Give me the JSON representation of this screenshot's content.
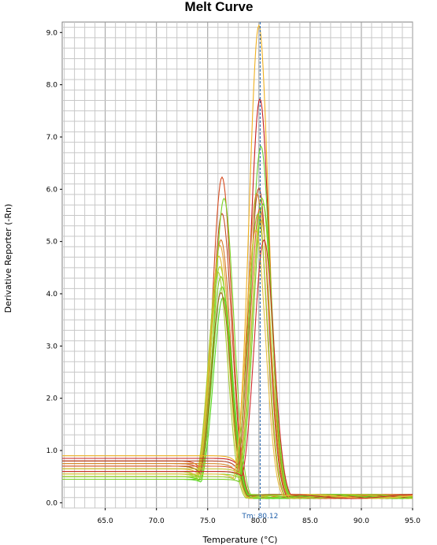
{
  "chart_data": {
    "type": "line",
    "title": "Melt Curve",
    "xlabel": "Temperature (°C)",
    "ylabel": "Derivative Reporter (-Rn)",
    "xlim": [
      60.8,
      95.0
    ],
    "ylim": [
      -0.1,
      9.2
    ],
    "x_ticks": [
      65.0,
      70.0,
      75.0,
      80.0,
      85.0,
      90.0,
      95.0
    ],
    "x_tick_labels": [
      "65.0",
      "70.0",
      "75.0",
      "80.0",
      "85.0",
      "90.0",
      "95.0"
    ],
    "y_ticks": [
      0.0,
      1.0,
      2.0,
      3.0,
      4.0,
      5.0,
      6.0,
      7.0,
      8.0,
      9.0
    ],
    "y_tick_labels": [
      "0.0",
      "1.0",
      "2.0",
      "3.0",
      "4.0",
      "5.0",
      "6.0",
      "7.0",
      "8.0",
      "9.0"
    ],
    "grid": true,
    "marker": {
      "x": 80.12,
      "label": "Tm: 80.12",
      "color": "#1f5faa"
    },
    "peaks": [
      {
        "tm": 76.4,
        "height": 6.2,
        "color": "#d44a1f",
        "base": 0.8
      },
      {
        "tm": 76.4,
        "height": 5.5,
        "color": "#c8502a",
        "base": 0.75
      },
      {
        "tm": 76.3,
        "height": 5.0,
        "color": "#d6792a",
        "base": 0.7
      },
      {
        "tm": 76.2,
        "height": 4.9,
        "color": "#e8a93a",
        "base": 0.65
      },
      {
        "tm": 76.1,
        "height": 4.7,
        "color": "#e0b830",
        "base": 0.6
      },
      {
        "tm": 76.2,
        "height": 4.5,
        "color": "#b6d42c",
        "base": 0.55
      },
      {
        "tm": 76.3,
        "height": 4.3,
        "color": "#8ad02a",
        "base": 0.5
      },
      {
        "tm": 76.4,
        "height": 4.1,
        "color": "#6cd42a",
        "base": 0.5
      },
      {
        "tm": 76.5,
        "height": 3.9,
        "color": "#58d820",
        "base": 0.45
      },
      {
        "tm": 76.6,
        "height": 5.8,
        "color": "#7ad424",
        "base": 0.55
      },
      {
        "tm": 76.0,
        "height": 4.4,
        "color": "#a8d030",
        "base": 0.6
      },
      {
        "tm": 76.3,
        "height": 4.0,
        "color": "#9c6a1c",
        "base": 0.7
      },
      {
        "tm": 80.0,
        "height": 9.1,
        "color": "#f0b020",
        "base": 0.9
      },
      {
        "tm": 80.1,
        "height": 7.7,
        "color": "#c81e1e",
        "base": 0.85
      },
      {
        "tm": 80.2,
        "height": 6.8,
        "color": "#66d030",
        "base": 0.6
      },
      {
        "tm": 80.0,
        "height": 6.0,
        "color": "#b84020",
        "base": 0.8
      },
      {
        "tm": 79.8,
        "height": 5.9,
        "color": "#d88a2a",
        "base": 0.75
      },
      {
        "tm": 80.3,
        "height": 5.8,
        "color": "#88d828",
        "base": 0.55
      },
      {
        "tm": 80.1,
        "height": 5.6,
        "color": "#e06030",
        "base": 0.7
      },
      {
        "tm": 79.9,
        "height": 5.5,
        "color": "#9ccc2a",
        "base": 0.5
      },
      {
        "tm": 80.2,
        "height": 5.4,
        "color": "#c4c02c",
        "base": 0.65
      },
      {
        "tm": 80.4,
        "height": 5.7,
        "color": "#78cc22",
        "base": 0.45
      },
      {
        "tm": 79.7,
        "height": 5.2,
        "color": "#e8c040",
        "base": 0.55
      },
      {
        "tm": 80.5,
        "height": 5.0,
        "color": "#d02c2c",
        "base": 0.6
      }
    ]
  }
}
